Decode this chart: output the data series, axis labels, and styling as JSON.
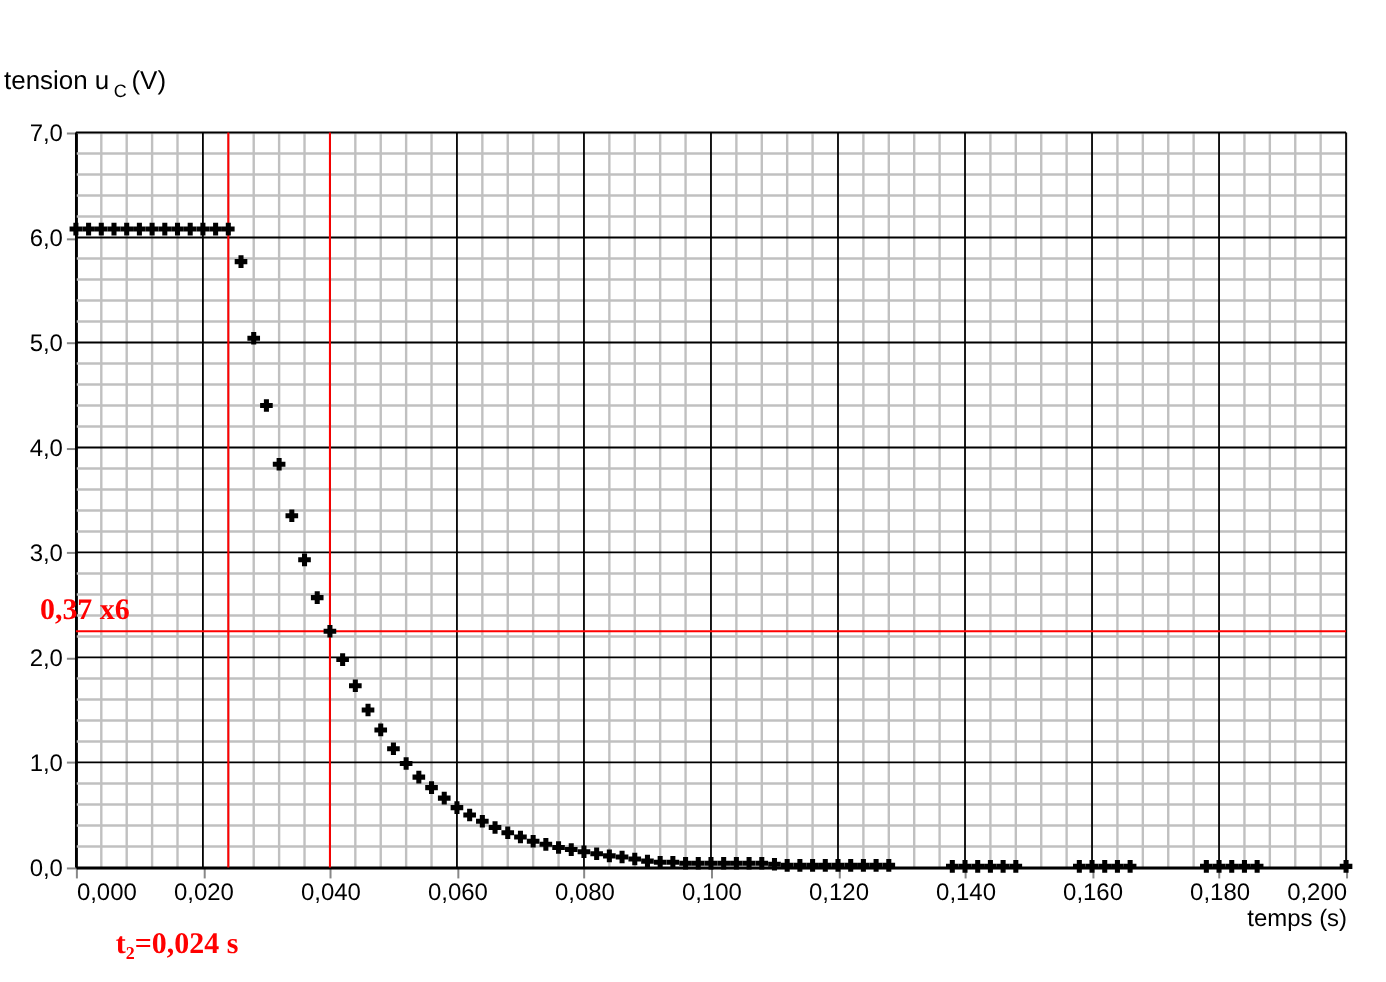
{
  "chart_data": {
    "type": "scatter",
    "xlabel": "temps (s)",
    "ylabel": "tension u$_{C}$ (V)",
    "x": [
      0,
      0.002,
      0.004,
      0.006,
      0.008,
      0.01,
      0.012,
      0.014,
      0.016,
      0.018,
      0.02,
      0.022,
      0.024,
      0.026,
      0.028,
      0.03,
      0.032,
      0.034,
      0.036,
      0.038,
      0.04,
      0.042,
      0.044,
      0.046,
      0.048,
      0.05,
      0.052,
      0.054,
      0.056,
      0.058,
      0.06,
      0.062,
      0.064,
      0.066,
      0.068,
      0.07,
      0.072,
      0.074,
      0.076,
      0.078,
      0.08,
      0.082,
      0.084,
      0.086,
      0.088,
      0.09,
      0.092,
      0.094,
      0.096,
      0.098,
      0.1,
      0.102,
      0.104,
      0.106,
      0.108,
      0.11,
      0.112,
      0.114,
      0.116,
      0.118,
      0.12,
      0.122,
      0.124,
      0.126,
      0.128,
      0.138,
      0.14,
      0.142,
      0.144,
      0.146,
      0.148,
      0.158,
      0.16,
      0.162,
      0.164,
      0.166,
      0.178,
      0.18,
      0.182,
      0.184,
      0.186,
      0.2
    ],
    "series": [
      {
        "color": "#000000",
        "values": [
          6.08,
          6.08,
          6.08,
          6.08,
          6.08,
          6.08,
          6.08,
          6.08,
          6.08,
          6.08,
          6.08,
          6.08,
          6.08,
          5.77,
          5.04,
          4.4,
          3.84,
          3.35,
          2.93,
          2.57,
          2.25,
          1.98,
          1.73,
          1.5,
          1.31,
          1.13,
          0.99,
          0.86,
          0.76,
          0.66,
          0.57,
          0.5,
          0.44,
          0.38,
          0.33,
          0.29,
          0.25,
          0.22,
          0.19,
          0.17,
          0.15,
          0.13,
          0.11,
          0.1,
          0.08,
          0.06,
          0.05,
          0.05,
          0.04,
          0.04,
          0.04,
          0.04,
          0.04,
          0.04,
          0.04,
          0.03,
          0.02,
          0.02,
          0.02,
          0.02,
          0.02,
          0.02,
          0.02,
          0.02,
          0.02,
          0.01,
          0.01,
          0.01,
          0.01,
          0.01,
          0.01,
          0.01,
          0.01,
          0.01,
          0.01,
          0.01,
          0.01,
          0.01,
          0.01,
          0.01,
          0.01,
          0.01
        ]
      }
    ],
    "marker": "cross",
    "grid": true,
    "xlim": [
      0,
      0.2
    ],
    "xticks": [
      {
        "value": 0,
        "label": "0,000"
      },
      {
        "value": 0.02,
        "label": "0,020"
      },
      {
        "value": 0.04,
        "label": "0,040"
      },
      {
        "value": 0.06,
        "label": "0,060"
      },
      {
        "value": 0.08,
        "label": "0,080"
      },
      {
        "value": 0.1,
        "label": "0,100"
      },
      {
        "value": 0.12,
        "label": "0,120"
      },
      {
        "value": 0.14,
        "label": "0,140"
      },
      {
        "value": 0.16,
        "label": "0,160"
      },
      {
        "value": 0.18,
        "label": "0,180"
      },
      {
        "value": 0.2,
        "label": "0,200"
      }
    ],
    "ylim": [
      0,
      7
    ],
    "yticks": [
      {
        "value": 0,
        "label": "0,0"
      },
      {
        "value": 1,
        "label": "1,0"
      },
      {
        "value": 2,
        "label": "2,0"
      },
      {
        "value": 3,
        "label": "3,0"
      },
      {
        "value": 4,
        "label": "4,0"
      },
      {
        "value": 5,
        "label": "5,0"
      },
      {
        "value": 6,
        "label": "6,0"
      },
      {
        "value": 7,
        "label": "7,0"
      }
    ],
    "ref_lines": [
      {
        "axis": "x",
        "value": 0.024,
        "color": "#ff0000"
      },
      {
        "axis": "x",
        "value": 0.04,
        "color": "#ff0000"
      },
      {
        "axis": "y",
        "value": 2.25,
        "color": "#ff0000"
      }
    ],
    "annotations": [
      {
        "text": "0,37 x6",
        "x": 0,
        "y": 2.25
      },
      "t₂=0,024 s"
    ]
  }
}
